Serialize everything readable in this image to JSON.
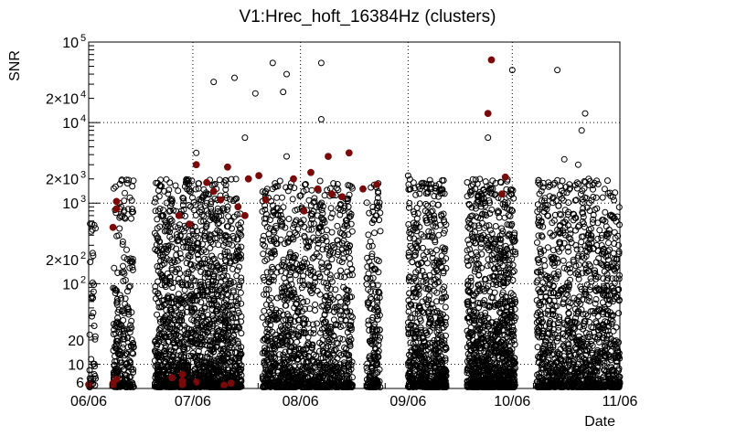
{
  "chart_data": {
    "type": "scatter",
    "title": "V1:Hrec_hoft_16384Hz (clusters)",
    "xlabel": "Date",
    "ylabel": "SNR",
    "y_scale": "log",
    "grid": true,
    "x_axis": {
      "type": "date",
      "range": [
        "2023-06-06",
        "2023-11-06"
      ],
      "ticks": [
        {
          "value": "2023-06-06",
          "label": "06/06"
        },
        {
          "value": "2023-07-06",
          "label": "07/06"
        },
        {
          "value": "2023-08-06",
          "label": "08/06"
        },
        {
          "value": "2023-09-06",
          "label": "09/06"
        },
        {
          "value": "2023-10-06",
          "label": "10/06"
        },
        {
          "value": "2023-11-06",
          "label": "11/06"
        }
      ]
    },
    "y_axis": {
      "range": [
        5,
        100000
      ],
      "ticks": [
        {
          "value": 6,
          "label": "6"
        },
        {
          "value": 10,
          "label": "10"
        },
        {
          "value": 20,
          "label": "20"
        },
        {
          "value": 100,
          "label": "10",
          "sup": "2"
        },
        {
          "value": 200,
          "label": "2×10",
          "sup": "2"
        },
        {
          "value": 1000,
          "label": "10",
          "sup": "3"
        },
        {
          "value": 2000,
          "label": "2×10",
          "sup": "3"
        },
        {
          "value": 10000,
          "label": "10",
          "sup": "4"
        },
        {
          "value": 20000,
          "label": "2×10",
          "sup": "4"
        },
        {
          "value": 100000,
          "label": "10",
          "sup": "5"
        }
      ]
    },
    "colors": {
      "open_marker": "#000000",
      "filled_marker": "#7a0a0a",
      "grid": "#000000",
      "background": "#ffffff"
    },
    "series": [
      {
        "marker": "open-circle",
        "segments": [
          {
            "x": [
              "2023-06-06",
              "2023-06-08"
            ],
            "density": 40,
            "max": 600
          },
          {
            "x": [
              "2023-06-13",
              "2023-06-19"
            ],
            "density": 260,
            "max": 2000
          },
          {
            "x": [
              "2023-06-25",
              "2023-07-20"
            ],
            "density": 1700,
            "max": 2000
          },
          {
            "x": [
              "2023-07-26",
              "2023-08-21"
            ],
            "density": 1300,
            "max": 2000
          },
          {
            "x": [
              "2023-08-25",
              "2023-08-29"
            ],
            "density": 200,
            "max": 1800
          },
          {
            "x": [
              "2023-09-06",
              "2023-09-17"
            ],
            "density": 700,
            "max": 2000
          },
          {
            "x": [
              "2023-09-23",
              "2023-10-07"
            ],
            "density": 1100,
            "max": 2000
          },
          {
            "x": [
              "2023-10-13",
              "2023-11-06"
            ],
            "density": 1300,
            "max": 2000
          }
        ],
        "points": [
          {
            "x": "2023-07-12",
            "y": 32000
          },
          {
            "x": "2023-07-18",
            "y": 36000
          },
          {
            "x": "2023-07-24",
            "y": 23000
          },
          {
            "x": "2023-07-29",
            "y": 55000
          },
          {
            "x": "2023-08-02",
            "y": 40000
          },
          {
            "x": "2023-08-01",
            "y": 24000
          },
          {
            "x": "2023-08-12",
            "y": 55000
          },
          {
            "x": "2023-08-12",
            "y": 11000
          },
          {
            "x": "2023-10-06",
            "y": 45000
          },
          {
            "x": "2023-10-19",
            "y": 45000
          },
          {
            "x": "2023-10-27",
            "y": 13000
          },
          {
            "x": "2023-10-26",
            "y": 8000
          },
          {
            "x": "2023-09-29",
            "y": 6500
          },
          {
            "x": "2023-07-21",
            "y": 6500
          },
          {
            "x": "2023-07-07",
            "y": 4200
          },
          {
            "x": "2023-08-02",
            "y": 3800
          },
          {
            "x": "2023-10-21",
            "y": 3500
          },
          {
            "x": "2023-10-25",
            "y": 3000
          },
          {
            "x": "2023-09-06",
            "y": 2200
          },
          {
            "x": "2023-10-28",
            "y": 2000
          }
        ]
      },
      {
        "marker": "filled-circle",
        "points": [
          {
            "x": "2023-09-30",
            "y": 60000
          },
          {
            "x": "2023-09-29",
            "y": 13000
          },
          {
            "x": "2023-08-14",
            "y": 3800
          },
          {
            "x": "2023-08-20",
            "y": 4200
          },
          {
            "x": "2023-07-07",
            "y": 3000
          },
          {
            "x": "2023-07-16",
            "y": 2800
          },
          {
            "x": "2023-07-22",
            "y": 2000
          },
          {
            "x": "2023-07-25",
            "y": 2200
          },
          {
            "x": "2023-08-04",
            "y": 2000
          },
          {
            "x": "2023-08-09",
            "y": 2400
          },
          {
            "x": "2023-08-11",
            "y": 1500
          },
          {
            "x": "2023-08-15",
            "y": 1300
          },
          {
            "x": "2023-08-24",
            "y": 1500
          },
          {
            "x": "2023-08-28",
            "y": 1700
          },
          {
            "x": "2023-10-04",
            "y": 2100
          },
          {
            "x": "2023-10-03",
            "y": 1300
          },
          {
            "x": "2023-07-10",
            "y": 1800
          },
          {
            "x": "2023-07-12",
            "y": 1400
          },
          {
            "x": "2023-07-14",
            "y": 1100
          },
          {
            "x": "2023-07-19",
            "y": 900
          },
          {
            "x": "2023-07-21",
            "y": 700
          },
          {
            "x": "2023-07-27",
            "y": 1100
          },
          {
            "x": "2023-08-07",
            "y": 800
          },
          {
            "x": "2023-06-14",
            "y": 1050
          },
          {
            "x": "2023-06-14",
            "y": 850
          },
          {
            "x": "2023-06-13",
            "y": 500
          },
          {
            "x": "2023-07-02",
            "y": 700
          },
          {
            "x": "2023-07-05",
            "y": 550
          },
          {
            "x": "2023-08-18",
            "y": 1200
          },
          {
            "x": "2023-06-06",
            "y": 5.6
          },
          {
            "x": "2023-06-14",
            "y": 6.5
          },
          {
            "x": "2023-06-13",
            "y": 5.8
          },
          {
            "x": "2023-06-13",
            "y": 5.5
          },
          {
            "x": "2023-06-30",
            "y": 6.8
          },
          {
            "x": "2023-07-03",
            "y": 7.5
          },
          {
            "x": "2023-07-03",
            "y": 6.2
          },
          {
            "x": "2023-07-03",
            "y": 5.6
          },
          {
            "x": "2023-07-07",
            "y": 6.0
          },
          {
            "x": "2023-07-15",
            "y": 5.5
          },
          {
            "x": "2023-07-17",
            "y": 5.8
          }
        ]
      }
    ]
  }
}
